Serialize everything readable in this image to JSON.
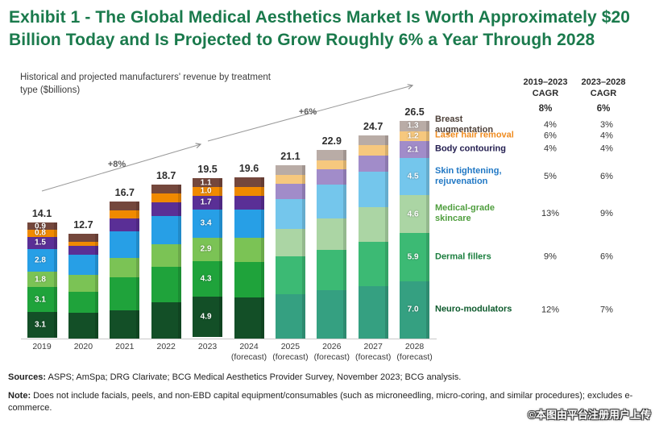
{
  "title": "Exhibit 1 - The Global Medical Aesthetics Market Is Worth Approximately $20 Billion Today and Is Projected to Grow Roughly 6% a Year Through 2028",
  "subtitle": "Historical and projected manufacturers' revenue by treatment type ($billions)",
  "annotations": {
    "hist_growth": "+8%",
    "forecast_growth": "+6%"
  },
  "cagr_table": {
    "col_header_1": "2019–2023",
    "col_header_2": "2023–2028",
    "col_subheader": "CAGR",
    "overall_2019_2023": "8%",
    "overall_2023_2028": "6%"
  },
  "chart_data": {
    "type": "bar",
    "stacked": true,
    "title": "Historical and projected manufacturers' revenue by treatment type ($billions)",
    "xlabel": "",
    "ylabel": "$billions",
    "ylim": [
      0,
      28
    ],
    "grid": false,
    "legend_position": "right",
    "categories": [
      {
        "year": "2019",
        "forecast_label": false,
        "light_palette": false
      },
      {
        "year": "2020",
        "forecast_label": false,
        "light_palette": false
      },
      {
        "year": "2021",
        "forecast_label": false,
        "light_palette": false
      },
      {
        "year": "2022",
        "forecast_label": false,
        "light_palette": false
      },
      {
        "year": "2023",
        "forecast_label": false,
        "light_palette": false
      },
      {
        "year": "2024",
        "forecast_label": true,
        "light_palette": false
      },
      {
        "year": "2025",
        "forecast_label": true,
        "light_palette": true
      },
      {
        "year": "2026",
        "forecast_label": true,
        "light_palette": true
      },
      {
        "year": "2027",
        "forecast_label": true,
        "light_palette": true
      },
      {
        "year": "2028",
        "forecast_label": true,
        "light_palette": true
      }
    ],
    "forecast_suffix": "(forecast)",
    "totals": [
      14.1,
      12.7,
      16.7,
      18.7,
      19.5,
      19.6,
      21.1,
      22.9,
      24.7,
      26.5
    ],
    "labeled_years": [
      "2019",
      "2023",
      "2028"
    ],
    "series": [
      {
        "name": "Neuro-modulators",
        "color": "#134f27",
        "color_forecast": "#35a081",
        "values": [
          3.1,
          3.1,
          3.4,
          4.4,
          4.9,
          5.0,
          5.4,
          5.9,
          6.4,
          7.0
        ]
      },
      {
        "name": "Dermal fillers",
        "color": "#1fa33b",
        "color_forecast": "#3cba74",
        "values": [
          3.1,
          2.6,
          4.0,
          4.3,
          4.3,
          4.3,
          4.6,
          4.9,
          5.4,
          5.9
        ]
      },
      {
        "name": "Medical-grade skincare",
        "color": "#7bc355",
        "color_forecast": "#abd5a4",
        "values": [
          1.8,
          2.0,
          2.4,
          2.8,
          2.9,
          3.0,
          3.3,
          3.8,
          4.2,
          4.6
        ]
      },
      {
        "name": "Skin tightening, rejuvenation",
        "color": "#279fe6",
        "color_forecast": "#74c6ec",
        "values": [
          2.8,
          2.5,
          3.2,
          3.4,
          3.4,
          3.4,
          3.7,
          4.1,
          4.3,
          4.5
        ]
      },
      {
        "name": "Body contouring",
        "color": "#5a2f96",
        "color_forecast": "#a18cc9",
        "values": [
          1.5,
          1.1,
          1.6,
          1.7,
          1.7,
          1.7,
          1.8,
          1.9,
          2.0,
          2.1
        ]
      },
      {
        "name": "Laser hair removal",
        "color": "#f08a00",
        "color_forecast": "#f6c87e",
        "values": [
          0.8,
          0.5,
          1.0,
          1.0,
          1.0,
          1.0,
          1.1,
          1.1,
          1.2,
          1.2
        ]
      },
      {
        "name": "Breast augmentation",
        "color": "#74473c",
        "color_forecast": "#b9aca6",
        "values": [
          0.9,
          0.9,
          1.1,
          1.1,
          1.1,
          1.2,
          1.2,
          1.2,
          1.2,
          1.3
        ]
      }
    ]
  },
  "legend": [
    {
      "label": "Breast augmentation",
      "cagr1": "4%",
      "cagr2": "3%",
      "text_color": "#4d4039"
    },
    {
      "label": "Laser hair removal",
      "cagr1": "6%",
      "cagr2": "4%",
      "text_color": "#ef8b1f"
    },
    {
      "label": "Body contouring",
      "cagr1": "4%",
      "cagr2": "4%",
      "text_color": "#221d4f"
    },
    {
      "label": "Skin tightening, rejuvenation",
      "cagr1": "5%",
      "cagr2": "6%",
      "text_color": "#1f77c4"
    },
    {
      "label": "Medical-grade skincare",
      "cagr1": "13%",
      "cagr2": "9%",
      "text_color": "#4f9e3e"
    },
    {
      "label": "Dermal fillers",
      "cagr1": "9%",
      "cagr2": "6%",
      "text_color": "#1b7e3e"
    },
    {
      "label": "Neuro-modulators",
      "cagr1": "12%",
      "cagr2": "7%",
      "text_color": "#0d5a2c"
    }
  ],
  "sources_label": "Sources:",
  "sources_text": " ASPS; AmSpa; DRG Clarivate; BCG Medical Aesthetics Provider Survey, November 2023; BCG analysis.",
  "note_label": "Note:",
  "note_text": " Does not include facials, peels, and non-EBD capital equipment/consumables (such as microneedling, micro-coring, and similar procedures); excludes e-commerce.",
  "watermark": "©本图由平台注册用户上传"
}
